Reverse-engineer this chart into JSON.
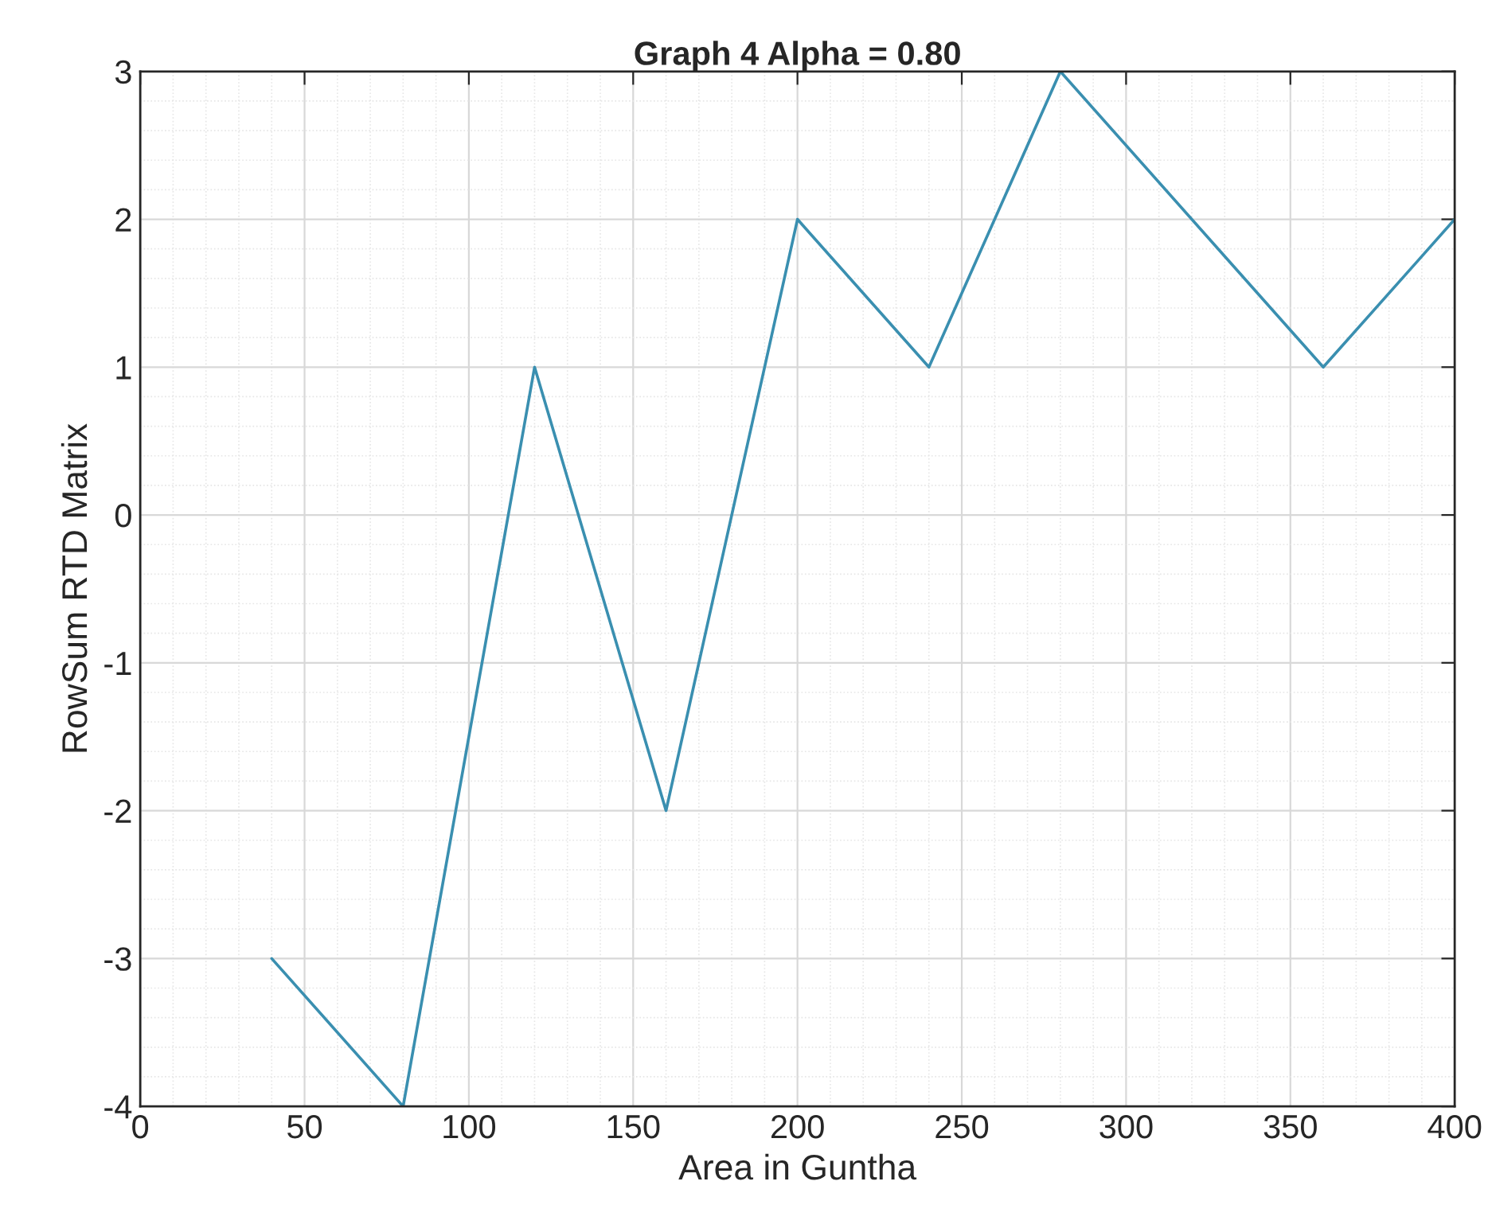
{
  "chart_data": {
    "type": "line",
    "title": "Graph 4 Alpha = 0.80",
    "xlabel": "Area in Guntha",
    "ylabel": "RowSum RTD Matrix",
    "x": [
      40,
      80,
      120,
      160,
      200,
      240,
      280,
      360,
      400
    ],
    "series": [
      {
        "color": "#3a8fb0",
        "values": [
          -3,
          -4,
          1,
          -2,
          2,
          1,
          3,
          1,
          2
        ]
      }
    ],
    "xlim": [
      0,
      400
    ],
    "xticks": [
      0,
      50,
      100,
      150,
      200,
      250,
      300,
      350,
      400
    ],
    "ylim": [
      -4,
      3
    ],
    "yticks": [
      -4,
      -3,
      -2,
      -1,
      0,
      1,
      2,
      3
    ],
    "grid": true,
    "marker": "none",
    "line_style": "solid"
  }
}
